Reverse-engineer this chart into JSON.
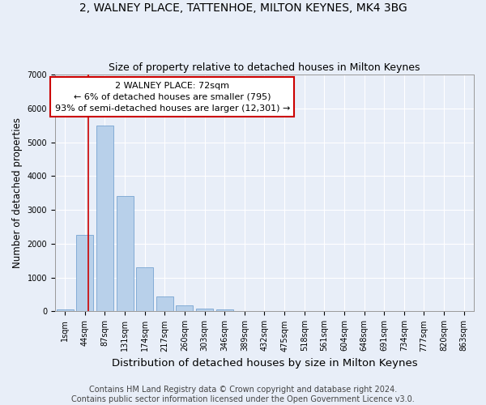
{
  "title": "2, WALNEY PLACE, TATTENHOE, MILTON KEYNES, MK4 3BG",
  "subtitle": "Size of property relative to detached houses in Milton Keynes",
  "xlabel": "Distribution of detached houses by size in Milton Keynes",
  "ylabel": "Number of detached properties",
  "footer_line1": "Contains HM Land Registry data © Crown copyright and database right 2024.",
  "footer_line2": "Contains public sector information licensed under the Open Government Licence v3.0.",
  "bar_labels": [
    "1sqm",
    "44sqm",
    "87sqm",
    "131sqm",
    "174sqm",
    "217sqm",
    "260sqm",
    "303sqm",
    "346sqm",
    "389sqm",
    "432sqm",
    "475sqm",
    "518sqm",
    "561sqm",
    "604sqm",
    "648sqm",
    "691sqm",
    "734sqm",
    "777sqm",
    "820sqm",
    "863sqm"
  ],
  "bar_values": [
    70,
    2270,
    5490,
    3420,
    1310,
    430,
    190,
    90,
    60,
    0,
    0,
    0,
    0,
    0,
    0,
    0,
    0,
    0,
    0,
    0,
    0
  ],
  "bar_color": "#b8d0ea",
  "bar_edge_color": "#6699cc",
  "annotation_line1": "2 WALNEY PLACE: 72sqm",
  "annotation_line2": "← 6% of detached houses are smaller (795)",
  "annotation_line3": "93% of semi-detached houses are larger (12,301) →",
  "annotation_box_color": "#ffffff",
  "annotation_box_edge": "#cc0000",
  "vline_color": "#cc0000",
  "vline_x": 1.15,
  "ylim": [
    0,
    7000
  ],
  "yticks": [
    0,
    1000,
    2000,
    3000,
    4000,
    5000,
    6000,
    7000
  ],
  "background_color": "#e8eef8",
  "plot_background": "#e8eef8",
  "grid_color": "#ffffff",
  "title_fontsize": 10,
  "subtitle_fontsize": 9,
  "xlabel_fontsize": 9.5,
  "ylabel_fontsize": 8.5,
  "tick_fontsize": 7,
  "footer_fontsize": 7,
  "annot_fontsize": 8
}
